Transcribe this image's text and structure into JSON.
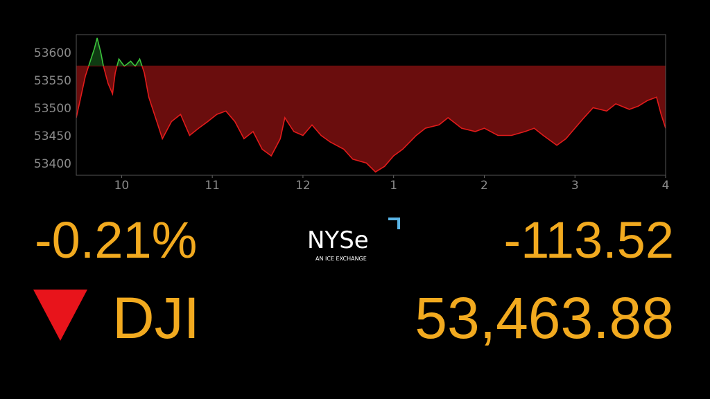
{
  "chart_data": {
    "type": "area",
    "x": [
      9.5,
      9.55,
      9.6,
      9.65,
      9.7,
      9.73,
      9.77,
      9.8,
      9.85,
      9.9,
      9.93,
      9.97,
      10.03,
      10.1,
      10.15,
      10.2,
      10.25,
      10.3,
      10.4,
      10.45,
      10.55,
      10.65,
      10.75,
      10.85,
      10.95,
      11.05,
      11.15,
      11.25,
      11.35,
      11.45,
      11.55,
      11.65,
      11.75,
      11.8,
      11.9,
      12.0,
      12.1,
      12.2,
      12.3,
      12.45,
      12.55,
      12.7,
      12.8,
      12.9,
      13.0,
      13.1,
      13.25,
      13.35,
      13.5,
      13.6,
      13.75,
      13.9,
      14.0,
      14.15,
      14.3,
      14.45,
      14.55,
      14.65,
      14.8,
      14.9,
      15.0,
      15.1,
      15.2,
      15.35,
      15.45,
      15.6,
      15.7,
      15.8,
      15.9,
      15.95,
      16.0
    ],
    "values": [
      53484,
      53521,
      53559,
      53584,
      53609,
      53628,
      53602,
      53577,
      53546,
      53527,
      53565,
      53590,
      53577,
      53586,
      53577,
      53590,
      53565,
      53521,
      53471,
      53446,
      53477,
      53490,
      53452,
      53465,
      53477,
      53490,
      53496,
      53477,
      53446,
      53459,
      53427,
      53415,
      53446,
      53484,
      53459,
      53452,
      53471,
      53452,
      53440,
      53427,
      53409,
      53402,
      53386,
      53396,
      53415,
      53427,
      53452,
      53465,
      53471,
      53484,
      53465,
      53459,
      53465,
      53452,
      53452,
      53459,
      53465,
      53452,
      53434,
      53446,
      53465,
      53484,
      53502,
      53496,
      53509,
      53499,
      53505,
      53515,
      53521,
      53490,
      53465
    ],
    "baseline": 53577.4,
    "color_up": "#3cc43c",
    "color_down": "#e21b1b",
    "fill_up": "#0f3a12",
    "fill_down": "#6a0d0d",
    "xlim": [
      9.5,
      16
    ],
    "xticks": [
      10,
      11,
      12,
      {
        "value": 13,
        "label": "1"
      },
      {
        "value": 14,
        "label": "2"
      },
      {
        "value": 15,
        "label": "3"
      },
      {
        "value": 16,
        "label": "4"
      }
    ],
    "ylim": [
      53380,
      53634
    ],
    "yticks": [
      53400,
      53450,
      53500,
      53550,
      53600
    ]
  },
  "ticker": {
    "change_pct": "-0.21%",
    "change": "-113.52",
    "symbol": "DJI",
    "price": "53,463.88"
  },
  "logo": {
    "name": "NYSe",
    "tagline": "AN ICE EXCHANGE"
  }
}
